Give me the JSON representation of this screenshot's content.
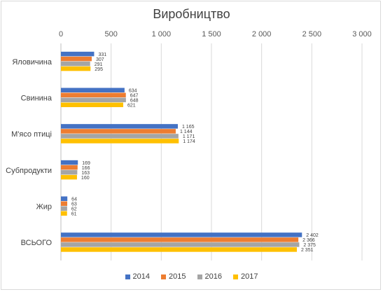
{
  "chart_data": {
    "type": "bar",
    "orientation": "horizontal",
    "title": "Виробництво",
    "categories": [
      "Яловичина",
      "Свинина",
      "М'ясо птиці",
      "Субпродукти",
      "Жир",
      "ВСЬОГО"
    ],
    "series": [
      {
        "name": "2014",
        "color": "#4472c4",
        "values": [
          331,
          634,
          1165,
          169,
          64,
          2402
        ],
        "labels": [
          "331",
          "634",
          "1 165",
          "169",
          "64",
          "2 402"
        ]
      },
      {
        "name": "2015",
        "color": "#ed7d31",
        "values": [
          307,
          647,
          1144,
          166,
          63,
          2366
        ],
        "labels": [
          "307",
          "647",
          "1 144",
          "166",
          "63",
          "2 366"
        ]
      },
      {
        "name": "2016",
        "color": "#a5a5a5",
        "values": [
          291,
          648,
          1171,
          163,
          62,
          2375
        ],
        "labels": [
          "291",
          "648",
          "1 171",
          "163",
          "62",
          "2 375"
        ]
      },
      {
        "name": "2017",
        "color": "#ffc000",
        "values": [
          295,
          621,
          1174,
          160,
          61,
          2351
        ],
        "labels": [
          "295",
          "621",
          "1 174",
          "160",
          "61",
          "2 351"
        ]
      }
    ],
    "xlim": [
      0,
      3000
    ],
    "xticks": [
      0,
      500,
      1000,
      1500,
      2000,
      2500,
      3000
    ],
    "xtick_labels": [
      "0",
      "500",
      "1 000",
      "1 500",
      "2 000",
      "2 500",
      "3 000"
    ],
    "xaxis_position": "top",
    "grid": true,
    "legend_position": "bottom"
  }
}
